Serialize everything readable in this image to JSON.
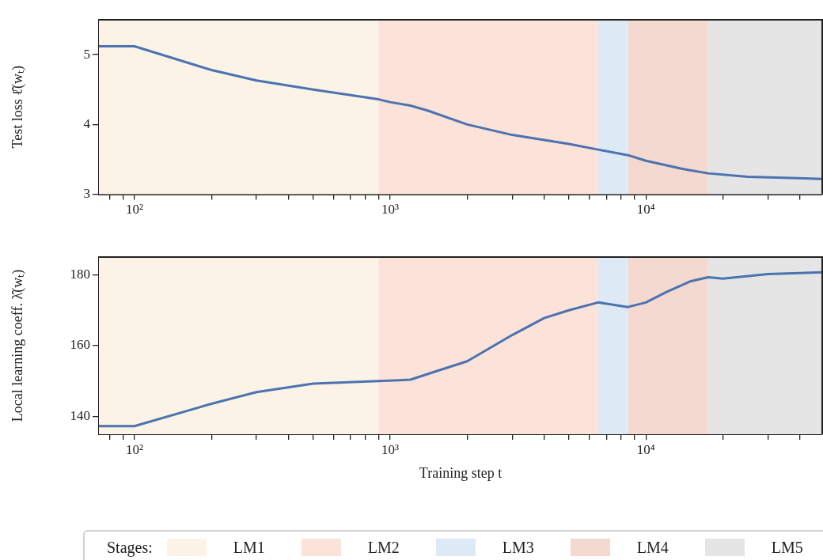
{
  "chart_data": [
    {
      "type": "line",
      "ylabel": "Test loss ℓ̂(wₜ)",
      "log": "x",
      "grid": false,
      "x": [
        72.6,
        100,
        200,
        300,
        500,
        900,
        1000,
        1200,
        1400,
        2000,
        3000,
        5000,
        6500,
        8500,
        10000,
        14000,
        17500,
        25000,
        48900
      ],
      "series": [
        {
          "color": "#4c72b0",
          "values": [
            5.12,
            5.12,
            4.78,
            4.63,
            4.5,
            4.36,
            4.32,
            4.27,
            4.2,
            4.0,
            3.85,
            3.72,
            3.64,
            3.56,
            3.48,
            3.36,
            3.3,
            3.25,
            3.22
          ]
        }
      ],
      "xlim": [
        72.6,
        48900
      ],
      "ylim": [
        3,
        5.5
      ],
      "yticks": [
        3,
        4,
        5
      ],
      "xticks": [
        {
          "value": 80,
          "label": null
        },
        {
          "value": 90,
          "label": null
        },
        {
          "value": 100,
          "label": "10²"
        },
        {
          "value": 200,
          "label": null
        },
        {
          "value": 300,
          "label": null
        },
        {
          "value": 400,
          "label": null
        },
        {
          "value": 500,
          "label": null
        },
        {
          "value": 600,
          "label": null
        },
        {
          "value": 700,
          "label": null
        },
        {
          "value": 800,
          "label": null
        },
        {
          "value": 900,
          "label": null
        },
        {
          "value": 1000,
          "label": "10³"
        },
        {
          "value": 2000,
          "label": null
        },
        {
          "value": 3000,
          "label": null
        },
        {
          "value": 4000,
          "label": null
        },
        {
          "value": 5000,
          "label": null
        },
        {
          "value": 6000,
          "label": null
        },
        {
          "value": 7000,
          "label": null
        },
        {
          "value": 8000,
          "label": null
        },
        {
          "value": 9000,
          "label": null
        },
        {
          "value": 10000,
          "label": "10⁴"
        },
        {
          "value": 20000,
          "label": null
        },
        {
          "value": 30000,
          "label": null
        },
        {
          "value": 40000,
          "label": null
        }
      ],
      "bands": [
        {
          "axis": "x",
          "from": 72.6,
          "to": 900,
          "color": "#fbf3e6"
        },
        {
          "axis": "x",
          "from": 900,
          "to": 6500,
          "color": "#fce3d9"
        },
        {
          "axis": "x",
          "from": 6500,
          "to": 8500,
          "color": "#dde9f5"
        },
        {
          "axis": "x",
          "from": 8500,
          "to": 17500,
          "color": "#f3d9cf"
        },
        {
          "axis": "x",
          "from": 17500,
          "to": 48900,
          "color": "#e5e5e5"
        }
      ]
    },
    {
      "type": "line",
      "ylabel": "Local learning coeff. λ̂(wₜ)",
      "xlabel": "Training step t",
      "log": "x",
      "grid": false,
      "legend": "bottom",
      "legend_title": "Stages:",
      "x": [
        72.6,
        100,
        200,
        300,
        500,
        900,
        1200,
        1500,
        2000,
        3000,
        4000,
        5000,
        6500,
        8500,
        10000,
        12000,
        15000,
        17500,
        20000,
        30000,
        48900
      ],
      "series": [
        {
          "color": "#4c72b0",
          "values": [
            137.3,
            137.3,
            143.6,
            146.9,
            149.3,
            150,
            150.4,
            152.7,
            155.6,
            163,
            167.8,
            170,
            172.2,
            170.9,
            172.2,
            175.1,
            178.2,
            179.3,
            178.9,
            180.2,
            180.7
          ]
        }
      ],
      "xlim": [
        72.6,
        48900
      ],
      "ylim": [
        135,
        185
      ],
      "yticks": [
        140,
        160,
        180
      ],
      "xticks": [
        {
          "value": 80,
          "label": null
        },
        {
          "value": 90,
          "label": null
        },
        {
          "value": 100,
          "label": "10²"
        },
        {
          "value": 200,
          "label": null
        },
        {
          "value": 300,
          "label": null
        },
        {
          "value": 400,
          "label": null
        },
        {
          "value": 500,
          "label": null
        },
        {
          "value": 600,
          "label": null
        },
        {
          "value": 700,
          "label": null
        },
        {
          "value": 800,
          "label": null
        },
        {
          "value": 900,
          "label": null
        },
        {
          "value": 1000,
          "label": "10³"
        },
        {
          "value": 2000,
          "label": null
        },
        {
          "value": 3000,
          "label": null
        },
        {
          "value": 4000,
          "label": null
        },
        {
          "value": 5000,
          "label": null
        },
        {
          "value": 6000,
          "label": null
        },
        {
          "value": 7000,
          "label": null
        },
        {
          "value": 8000,
          "label": null
        },
        {
          "value": 9000,
          "label": null
        },
        {
          "value": 10000,
          "label": "10⁴"
        },
        {
          "value": 20000,
          "label": null
        },
        {
          "value": 30000,
          "label": null
        },
        {
          "value": 40000,
          "label": null
        }
      ],
      "bands": [
        {
          "axis": "x",
          "from": 72.6,
          "to": 900,
          "color": "#fbf3e6",
          "label": "LM1"
        },
        {
          "axis": "x",
          "from": 900,
          "to": 6500,
          "color": "#fce3d9",
          "label": "LM2"
        },
        {
          "axis": "x",
          "from": 6500,
          "to": 8500,
          "color": "#dde9f5",
          "label": "LM3"
        },
        {
          "axis": "x",
          "from": 8500,
          "to": 17500,
          "color": "#f3d9cf",
          "label": "LM4"
        },
        {
          "axis": "x",
          "from": 17500,
          "to": 48900,
          "color": "#e5e5e5",
          "label": "LM5"
        }
      ]
    }
  ]
}
